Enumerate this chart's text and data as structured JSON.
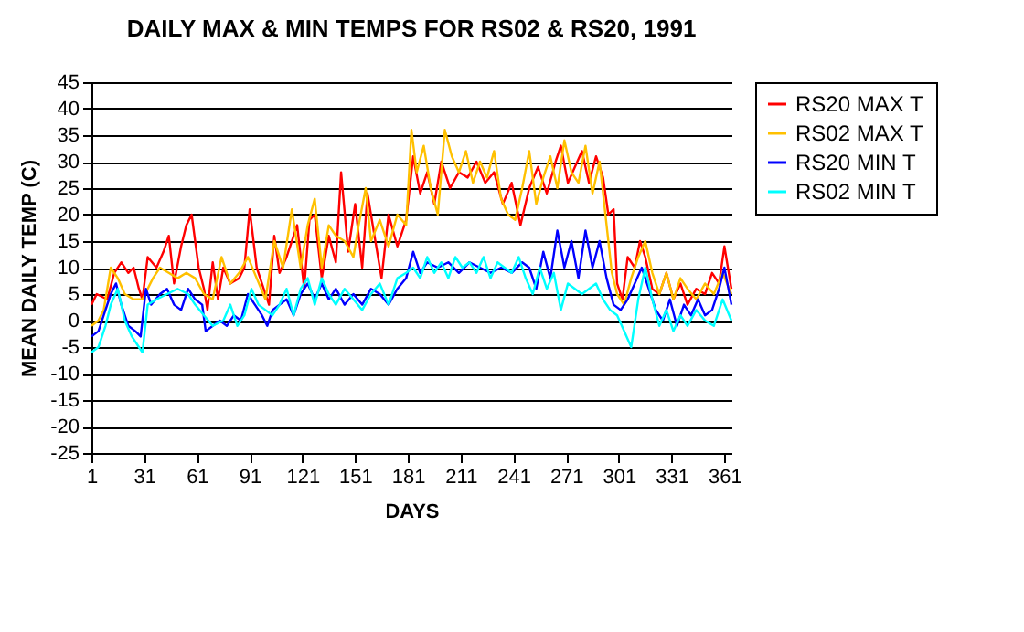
{
  "chart_data": {
    "type": "line",
    "title": "DAILY MAX & MIN TEMPS FOR RS02 & RS20, 1991",
    "xlabel": "DAYS",
    "ylabel": "MEAN DAILY TEMP (C)",
    "xlim": [
      1,
      365
    ],
    "xticks": [
      1,
      31,
      61,
      91,
      121,
      151,
      181,
      211,
      241,
      271,
      301,
      331,
      361
    ],
    "ylim": [
      -25,
      45
    ],
    "yticks": [
      -25,
      -20,
      -15,
      -10,
      -5,
      0,
      5,
      10,
      15,
      20,
      25,
      30,
      35,
      40,
      45
    ],
    "grid": "y",
    "legend": "right",
    "marker": "none",
    "line_style": "solid",
    "series": [
      {
        "name": "RS20 MAX T",
        "color": "#ff0000",
        "x": [
          1,
          4,
          10,
          14,
          18,
          22,
          25,
          28,
          30,
          33,
          38,
          42,
          45,
          48,
          52,
          55,
          58,
          62,
          65,
          67,
          70,
          73,
          76,
          80,
          85,
          88,
          91,
          95,
          98,
          102,
          105,
          108,
          112,
          118,
          122,
          125,
          128,
          132,
          136,
          140,
          143,
          147,
          151,
          155,
          158,
          162,
          166,
          170,
          175,
          180,
          184,
          188,
          192,
          196,
          200,
          205,
          210,
          215,
          220,
          225,
          230,
          235,
          240,
          245,
          250,
          255,
          260,
          265,
          268,
          272,
          276,
          280,
          284,
          288,
          292,
          295,
          298,
          300,
          303,
          306,
          310,
          313,
          316,
          320,
          324,
          328,
          332,
          336,
          340,
          345,
          350,
          354,
          358,
          361,
          365
        ],
        "values": [
          3,
          5,
          4,
          9,
          11,
          9,
          10,
          6,
          4,
          12,
          10,
          13,
          16,
          7,
          14,
          18,
          20,
          10,
          6,
          2,
          11,
          4,
          10,
          7,
          8,
          10,
          21,
          10,
          7,
          3,
          16,
          9,
          12,
          18,
          6,
          19,
          20,
          8,
          16,
          11,
          28,
          13,
          22,
          10,
          24,
          16,
          8,
          20,
          14,
          19,
          31,
          24,
          28,
          22,
          30,
          25,
          28,
          27,
          30,
          26,
          28,
          22,
          26,
          18,
          25,
          29,
          24,
          30,
          33,
          26,
          29,
          32,
          26,
          31,
          27,
          20,
          21,
          7,
          4,
          12,
          10,
          15,
          12,
          6,
          5,
          9,
          4,
          7,
          3,
          6,
          5,
          9,
          7,
          14,
          6
        ]
      },
      {
        "name": "RS02 MAX T",
        "color": "#ffc000",
        "x": [
          1,
          5,
          8,
          12,
          16,
          20,
          25,
          30,
          33,
          36,
          40,
          45,
          50,
          55,
          60,
          65,
          70,
          75,
          80,
          85,
          90,
          95,
          100,
          105,
          110,
          115,
          120,
          124,
          128,
          132,
          136,
          140,
          145,
          150,
          153,
          157,
          160,
          165,
          170,
          175,
          180,
          183,
          186,
          190,
          194,
          198,
          202,
          206,
          210,
          214,
          218,
          222,
          226,
          230,
          234,
          238,
          242,
          246,
          250,
          254,
          258,
          262,
          266,
          270,
          274,
          278,
          282,
          286,
          290,
          294,
          297,
          300,
          304,
          308,
          312,
          316,
          320,
          324,
          328,
          332,
          336,
          340,
          345,
          350,
          355,
          360,
          365
        ],
        "values": [
          -1,
          0,
          2,
          10,
          8,
          5,
          4,
          4,
          6,
          8,
          10,
          9,
          8,
          9,
          8,
          5,
          4,
          12,
          7,
          9,
          12,
          8,
          4,
          15,
          10,
          21,
          10,
          18,
          23,
          10,
          18,
          16,
          15,
          12,
          18,
          25,
          15,
          19,
          14,
          20,
          18,
          36,
          28,
          33,
          25,
          20,
          36,
          31,
          28,
          32,
          26,
          30,
          27,
          32,
          23,
          20,
          19,
          25,
          32,
          22,
          27,
          31,
          25,
          34,
          28,
          26,
          33,
          24,
          30,
          18,
          9,
          5,
          3,
          8,
          12,
          15,
          9,
          5,
          9,
          4,
          8,
          6,
          4,
          7,
          5,
          9,
          5
        ]
      },
      {
        "name": "RS20 MIN T",
        "color": "#0000ff",
        "x": [
          1,
          5,
          8,
          12,
          15,
          18,
          22,
          26,
          29,
          32,
          35,
          40,
          44,
          48,
          52,
          56,
          60,
          64,
          66,
          70,
          74,
          78,
          82,
          86,
          90,
          94,
          98,
          101,
          104,
          108,
          112,
          116,
          120,
          124,
          128,
          132,
          136,
          140,
          145,
          150,
          155,
          160,
          165,
          170,
          175,
          180,
          184,
          188,
          192,
          198,
          204,
          210,
          216,
          222,
          228,
          234,
          240,
          246,
          250,
          254,
          258,
          262,
          266,
          270,
          274,
          278,
          282,
          286,
          290,
          294,
          298,
          302,
          306,
          310,
          314,
          318,
          322,
          326,
          330,
          334,
          338,
          342,
          346,
          350,
          354,
          358,
          361,
          365
        ],
        "values": [
          -3,
          -2,
          1,
          5,
          7,
          3,
          -1,
          -2,
          -3,
          6,
          3,
          5,
          6,
          3,
          2,
          6,
          4,
          3,
          -2,
          -1,
          0,
          -1,
          1,
          0,
          5,
          3,
          1,
          -1,
          2,
          3,
          4,
          1,
          5,
          7,
          4,
          7,
          4,
          6,
          3,
          5,
          3,
          6,
          5,
          3,
          6,
          8,
          13,
          9,
          11,
          10,
          11,
          9,
          11,
          10,
          9,
          10,
          9,
          11,
          10,
          6,
          13,
          8,
          17,
          10,
          15,
          8,
          17,
          10,
          15,
          8,
          3,
          2,
          4,
          7,
          10,
          6,
          2,
          0,
          4,
          -1,
          3,
          1,
          4,
          1,
          2,
          6,
          10,
          3
        ]
      },
      {
        "name": "RS02 MIN T",
        "color": "#00ffff",
        "x": [
          1,
          5,
          9,
          12,
          16,
          20,
          24,
          28,
          30,
          33,
          38,
          44,
          50,
          56,
          60,
          65,
          70,
          76,
          80,
          84,
          88,
          92,
          96,
          100,
          104,
          108,
          112,
          116,
          120,
          124,
          128,
          132,
          136,
          140,
          145,
          150,
          155,
          160,
          165,
          170,
          175,
          180,
          184,
          188,
          192,
          196,
          200,
          204,
          208,
          212,
          216,
          220,
          224,
          228,
          232,
          236,
          240,
          244,
          248,
          252,
          256,
          260,
          264,
          268,
          272,
          276,
          280,
          284,
          288,
          292,
          296,
          300,
          304,
          308,
          312,
          316,
          320,
          324,
          328,
          332,
          336,
          340,
          345,
          350,
          355,
          360,
          365
        ],
        "values": [
          -6,
          -5,
          -1,
          3,
          6,
          0,
          -3,
          -5,
          -6,
          3,
          4,
          5,
          6,
          5,
          3,
          1,
          -1,
          0,
          3,
          -1,
          1,
          6,
          3,
          2,
          1,
          3,
          6,
          1,
          6,
          8,
          3,
          8,
          5,
          3,
          6,
          4,
          2,
          5,
          7,
          3,
          8,
          9,
          10,
          8,
          12,
          9,
          11,
          8,
          12,
          10,
          11,
          9,
          12,
          8,
          11,
          10,
          9,
          12,
          8,
          5,
          10,
          6,
          9,
          2,
          7,
          6,
          5,
          6,
          7,
          4,
          2,
          1,
          -2,
          -5,
          4,
          10,
          4,
          -1,
          2,
          -2,
          1,
          -1,
          2,
          0,
          -1,
          4,
          0
        ]
      }
    ]
  }
}
